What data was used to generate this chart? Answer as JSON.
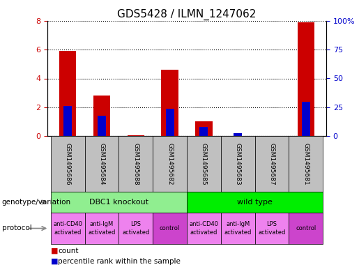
{
  "title": "GDS5428 / ILMN_1247062",
  "samples": [
    "GSM1495686",
    "GSM1495684",
    "GSM1495688",
    "GSM1495682",
    "GSM1495685",
    "GSM1495683",
    "GSM1495687",
    "GSM1495681"
  ],
  "count_values": [
    5.9,
    2.8,
    0.05,
    4.6,
    1.0,
    0.02,
    0.02,
    7.9
  ],
  "percentile_values": [
    2.1,
    1.4,
    0.0,
    1.9,
    0.65,
    0.2,
    0.0,
    2.4
  ],
  "red_color": "#cc0000",
  "blue_color": "#0000cc",
  "left_ylim": [
    0,
    8
  ],
  "right_ylim": [
    0,
    100
  ],
  "left_yticks": [
    0,
    2,
    4,
    6,
    8
  ],
  "right_yticks": [
    0,
    25,
    50,
    75,
    100
  ],
  "right_yticklabels": [
    "0",
    "25",
    "50",
    "75",
    "100%"
  ],
  "sample_box_color": "#c0c0c0",
  "genotype_groups": [
    {
      "label": "DBC1 knockout",
      "start": 0,
      "end": 4,
      "color": "#90ee90"
    },
    {
      "label": "wild type",
      "start": 4,
      "end": 8,
      "color": "#00dd00"
    }
  ],
  "protocol_groups": [
    {
      "label": "anti-CD40\nactivated",
      "start": 0,
      "end": 1,
      "color": "#ee82ee"
    },
    {
      "label": "anti-IgM\nactivated",
      "start": 1,
      "end": 2,
      "color": "#ee82ee"
    },
    {
      "label": "LPS\nactivated",
      "start": 2,
      "end": 3,
      "color": "#ee82ee"
    },
    {
      "label": "control",
      "start": 3,
      "end": 4,
      "color": "#cc44cc"
    },
    {
      "label": "anti-CD40\nactivated",
      "start": 4,
      "end": 5,
      "color": "#ee82ee"
    },
    {
      "label": "anti-IgM\nactivated",
      "start": 5,
      "end": 6,
      "color": "#ee82ee"
    },
    {
      "label": "LPS\nactivated",
      "start": 6,
      "end": 7,
      "color": "#ee82ee"
    },
    {
      "label": "control",
      "start": 7,
      "end": 8,
      "color": "#cc44cc"
    }
  ],
  "genotype_label": "genotype/variation",
  "protocol_label": "protocol",
  "title_fontsize": 11,
  "tick_fontsize": 8,
  "label_fontsize": 8
}
